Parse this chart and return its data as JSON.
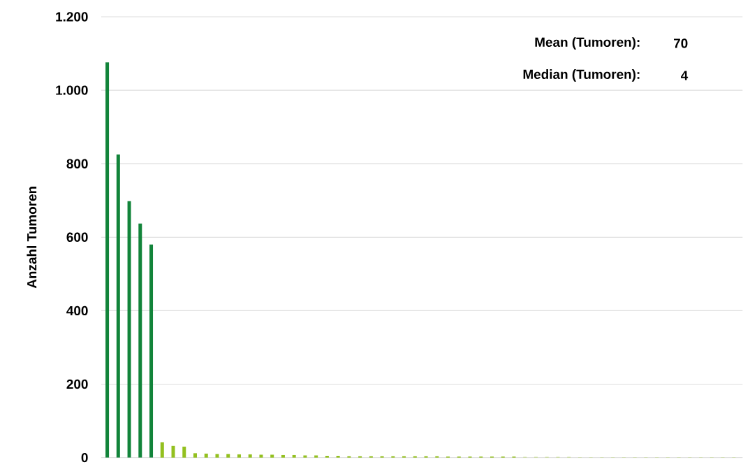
{
  "chart_data": {
    "type": "bar",
    "ylabel": "Anzahl Tumoren",
    "categories": [
      null,
      null,
      null,
      null,
      null,
      null,
      null,
      null,
      null,
      null,
      null,
      null,
      null,
      null,
      null,
      null,
      null,
      null,
      null,
      null,
      null,
      null,
      null,
      null,
      null,
      null,
      null,
      null,
      null,
      null,
      null,
      null,
      null,
      null,
      null,
      null,
      null,
      null,
      null,
      null,
      null,
      null,
      null,
      null,
      null,
      null,
      null,
      null,
      null,
      null,
      null,
      null,
      null,
      null,
      null,
      null,
      null,
      null
    ],
    "values": [
      1076,
      825,
      698,
      637,
      580,
      42,
      32,
      30,
      12,
      11,
      10,
      10,
      9,
      9,
      8,
      8,
      7,
      7,
      6,
      6,
      5,
      5,
      4,
      4,
      4,
      4,
      4,
      4,
      4,
      4,
      4,
      3,
      3,
      3,
      3,
      3,
      3,
      3,
      2,
      2,
      2,
      2,
      2,
      1,
      1,
      1,
      1,
      1,
      1,
      1,
      1,
      1,
      1,
      1,
      1,
      1,
      1,
      1
    ],
    "colors": [
      "#12843a",
      "#12843a",
      "#12843a",
      "#12843a",
      "#12843a",
      "#93c01f",
      "#93c01f",
      "#93c01f",
      "#93c01f",
      "#93c01f",
      "#93c01f",
      "#93c01f",
      "#93c01f",
      "#93c01f",
      "#93c01f",
      "#93c01f",
      "#93c01f",
      "#93c01f",
      "#93c01f",
      "#93c01f",
      "#93c01f",
      "#93c01f",
      "#93c01f",
      "#93c01f",
      "#93c01f",
      "#93c01f",
      "#93c01f",
      "#93c01f",
      "#93c01f",
      "#93c01f",
      "#93c01f",
      "#93c01f",
      "#93c01f",
      "#93c01f",
      "#93c01f",
      "#93c01f",
      "#93c01f",
      "#93c01f",
      "#c5dc8c",
      "#c5dc8c",
      "#c5dc8c",
      "#c5dc8c",
      "#c5dc8c",
      "#c5dc8c",
      "#c5dc8c",
      "#c5dc8c",
      "#c5dc8c",
      "#c5dc8c",
      "#c5dc8c",
      "#c5dc8c",
      "#c5dc8c",
      "#c5dc8c",
      "#c5dc8c",
      "#c5dc8c",
      "#c5dc8c",
      "#c5dc8c",
      "#c5dc8c",
      "#c5dc8c"
    ],
    "ylim": [
      0,
      1200
    ],
    "yticks": [
      0,
      200,
      400,
      600,
      800,
      {
        "value": 1000,
        "label": "1.000"
      },
      {
        "value": 1200,
        "label": "1.200"
      }
    ],
    "grid": "y",
    "annotations": [
      "Mean (Tumoren):",
      "70",
      "Median (Tumoren):",
      "4"
    ]
  }
}
